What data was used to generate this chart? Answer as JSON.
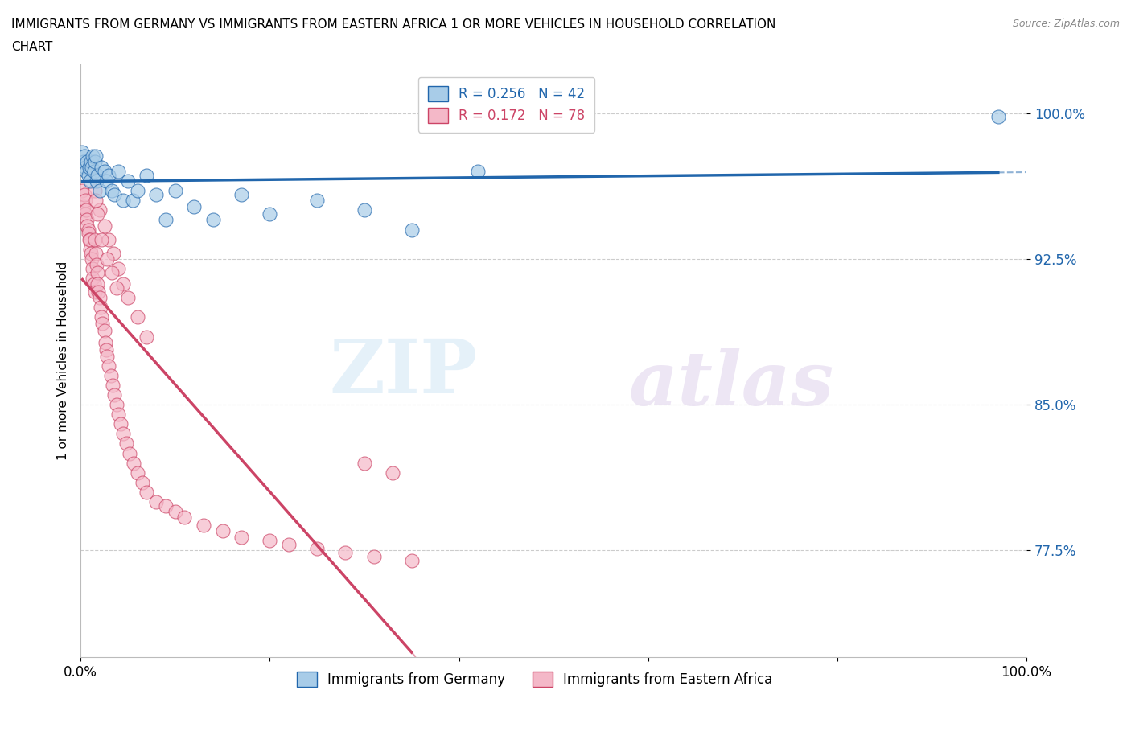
{
  "title_line1": "IMMIGRANTS FROM GERMANY VS IMMIGRANTS FROM EASTERN AFRICA 1 OR MORE VEHICLES IN HOUSEHOLD CORRELATION",
  "title_line2": "CHART",
  "source": "Source: ZipAtlas.com",
  "ylabel": "1 or more Vehicles in Household",
  "xlim": [
    0.0,
    1.0
  ],
  "ylim": [
    0.72,
    1.025
  ],
  "yticks": [
    0.775,
    0.85,
    0.925,
    1.0
  ],
  "ytick_labels": [
    "77.5%",
    "85.0%",
    "92.5%",
    "100.0%"
  ],
  "xticks": [
    0.0,
    0.2,
    0.4,
    0.6,
    0.8,
    1.0
  ],
  "xtick_labels": [
    "0.0%",
    "",
    "",
    "",
    "",
    "100.0%"
  ],
  "germany_color": "#a8cce8",
  "eastern_africa_color": "#f4b8c8",
  "germany_line_color": "#2166ac",
  "eastern_africa_line_color": "#cc4466",
  "R_germany": 0.256,
  "N_germany": 42,
  "R_eastern_africa": 0.172,
  "N_eastern_africa": 78,
  "germany_x": [
    0.002,
    0.003,
    0.004,
    0.005,
    0.006,
    0.007,
    0.008,
    0.009,
    0.01,
    0.011,
    0.012,
    0.013,
    0.014,
    0.015,
    0.016,
    0.017,
    0.018,
    0.02,
    0.022,
    0.025,
    0.027,
    0.03,
    0.033,
    0.036,
    0.04,
    0.045,
    0.05,
    0.055,
    0.06,
    0.07,
    0.08,
    0.09,
    0.1,
    0.12,
    0.14,
    0.17,
    0.2,
    0.25,
    0.3,
    0.35,
    0.42,
    0.97
  ],
  "germany_y": [
    0.98,
    0.975,
    0.978,
    0.972,
    0.97,
    0.975,
    0.968,
    0.972,
    0.965,
    0.975,
    0.972,
    0.978,
    0.97,
    0.975,
    0.978,
    0.965,
    0.968,
    0.96,
    0.972,
    0.97,
    0.965,
    0.968,
    0.96,
    0.958,
    0.97,
    0.955,
    0.965,
    0.955,
    0.96,
    0.968,
    0.958,
    0.945,
    0.96,
    0.952,
    0.945,
    0.958,
    0.948,
    0.955,
    0.95,
    0.94,
    0.97,
    0.998
  ],
  "eastern_africa_x": [
    0.002,
    0.003,
    0.004,
    0.005,
    0.005,
    0.006,
    0.007,
    0.007,
    0.008,
    0.008,
    0.009,
    0.01,
    0.01,
    0.011,
    0.012,
    0.013,
    0.013,
    0.014,
    0.015,
    0.015,
    0.016,
    0.017,
    0.018,
    0.018,
    0.019,
    0.02,
    0.021,
    0.022,
    0.023,
    0.025,
    0.026,
    0.027,
    0.028,
    0.03,
    0.032,
    0.034,
    0.036,
    0.038,
    0.04,
    0.042,
    0.045,
    0.048,
    0.052,
    0.056,
    0.06,
    0.065,
    0.07,
    0.08,
    0.09,
    0.1,
    0.11,
    0.13,
    0.15,
    0.17,
    0.2,
    0.22,
    0.25,
    0.28,
    0.31,
    0.35,
    0.015,
    0.02,
    0.025,
    0.03,
    0.035,
    0.04,
    0.045,
    0.05,
    0.06,
    0.07,
    0.016,
    0.018,
    0.022,
    0.028,
    0.033,
    0.038,
    0.3,
    0.33
  ],
  "eastern_africa_y": [
    0.96,
    0.952,
    0.958,
    0.955,
    0.948,
    0.95,
    0.945,
    0.942,
    0.94,
    0.938,
    0.935,
    0.93,
    0.935,
    0.928,
    0.925,
    0.92,
    0.915,
    0.912,
    0.908,
    0.935,
    0.928,
    0.922,
    0.918,
    0.912,
    0.908,
    0.905,
    0.9,
    0.895,
    0.892,
    0.888,
    0.882,
    0.878,
    0.875,
    0.87,
    0.865,
    0.86,
    0.855,
    0.85,
    0.845,
    0.84,
    0.835,
    0.83,
    0.825,
    0.82,
    0.815,
    0.81,
    0.805,
    0.8,
    0.798,
    0.795,
    0.792,
    0.788,
    0.785,
    0.782,
    0.78,
    0.778,
    0.776,
    0.774,
    0.772,
    0.77,
    0.96,
    0.95,
    0.942,
    0.935,
    0.928,
    0.92,
    0.912,
    0.905,
    0.895,
    0.885,
    0.955,
    0.948,
    0.935,
    0.925,
    0.918,
    0.91,
    0.82,
    0.815
  ],
  "watermark_zip": "ZIP",
  "watermark_atlas": "atlas",
  "background_color": "#ffffff",
  "grid_color": "#cccccc"
}
